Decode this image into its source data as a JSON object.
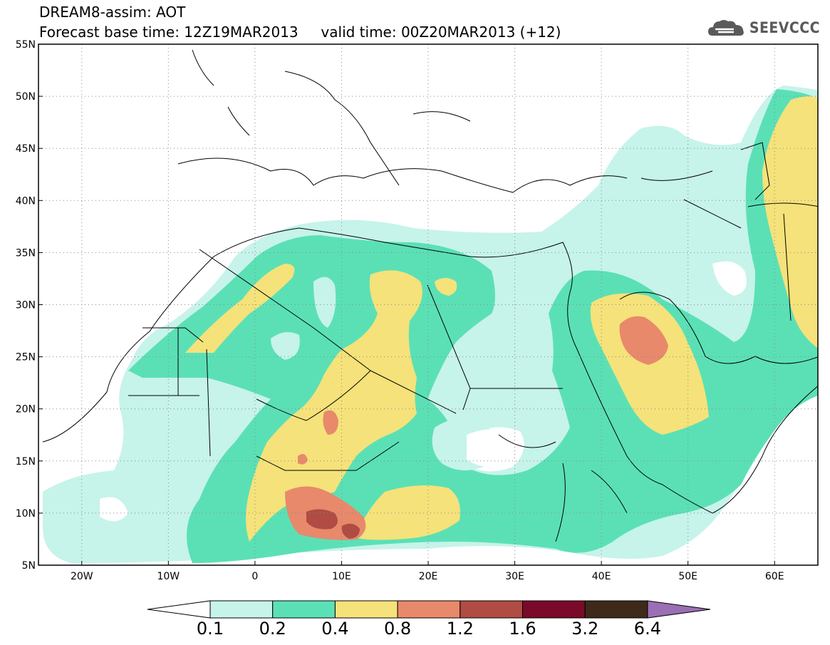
{
  "header": {
    "title_line1": "DREAM8-assim: AOT",
    "title_line2": "Forecast base time: 12Z19MAR2013     valid time: 00Z20MAR2013 (+12)",
    "logo_text": "SEEVCCC",
    "logo_icon": "cloud-icon"
  },
  "map": {
    "extent": {
      "lon_min": -25,
      "lon_max": 65,
      "lat_min": 5,
      "lat_max": 55
    },
    "lat_ticks": [
      {
        "value": 55,
        "label": "55N"
      },
      {
        "value": 50,
        "label": "50N"
      },
      {
        "value": 45,
        "label": "45N"
      },
      {
        "value": 40,
        "label": "40N"
      },
      {
        "value": 35,
        "label": "35N"
      },
      {
        "value": 30,
        "label": "30N"
      },
      {
        "value": 25,
        "label": "25N"
      },
      {
        "value": 20,
        "label": "20N"
      },
      {
        "value": 15,
        "label": "15N"
      },
      {
        "value": 10,
        "label": "10N"
      },
      {
        "value": 5,
        "label": "5N"
      }
    ],
    "lon_ticks": [
      {
        "value": -20,
        "label": "20W"
      },
      {
        "value": -10,
        "label": "10W"
      },
      {
        "value": 0,
        "label": "0"
      },
      {
        "value": 10,
        "label": "10E"
      },
      {
        "value": 20,
        "label": "20E"
      },
      {
        "value": 30,
        "label": "30E"
      },
      {
        "value": 40,
        "label": "40E"
      },
      {
        "value": 50,
        "label": "50E"
      },
      {
        "value": 60,
        "label": "60E"
      }
    ],
    "grid": true
  },
  "colorbar": {
    "levels": [
      "0.1",
      "0.2",
      "0.4",
      "0.8",
      "1.2",
      "1.6",
      "3.2",
      "6.4"
    ],
    "colors": [
      "#ffffff",
      "#c6f3ea",
      "#5be0b6",
      "#f5e27a",
      "#e8896b",
      "#b04c43",
      "#7a0a2a",
      "#3e2a1b",
      "#9b6fb3"
    ]
  }
}
